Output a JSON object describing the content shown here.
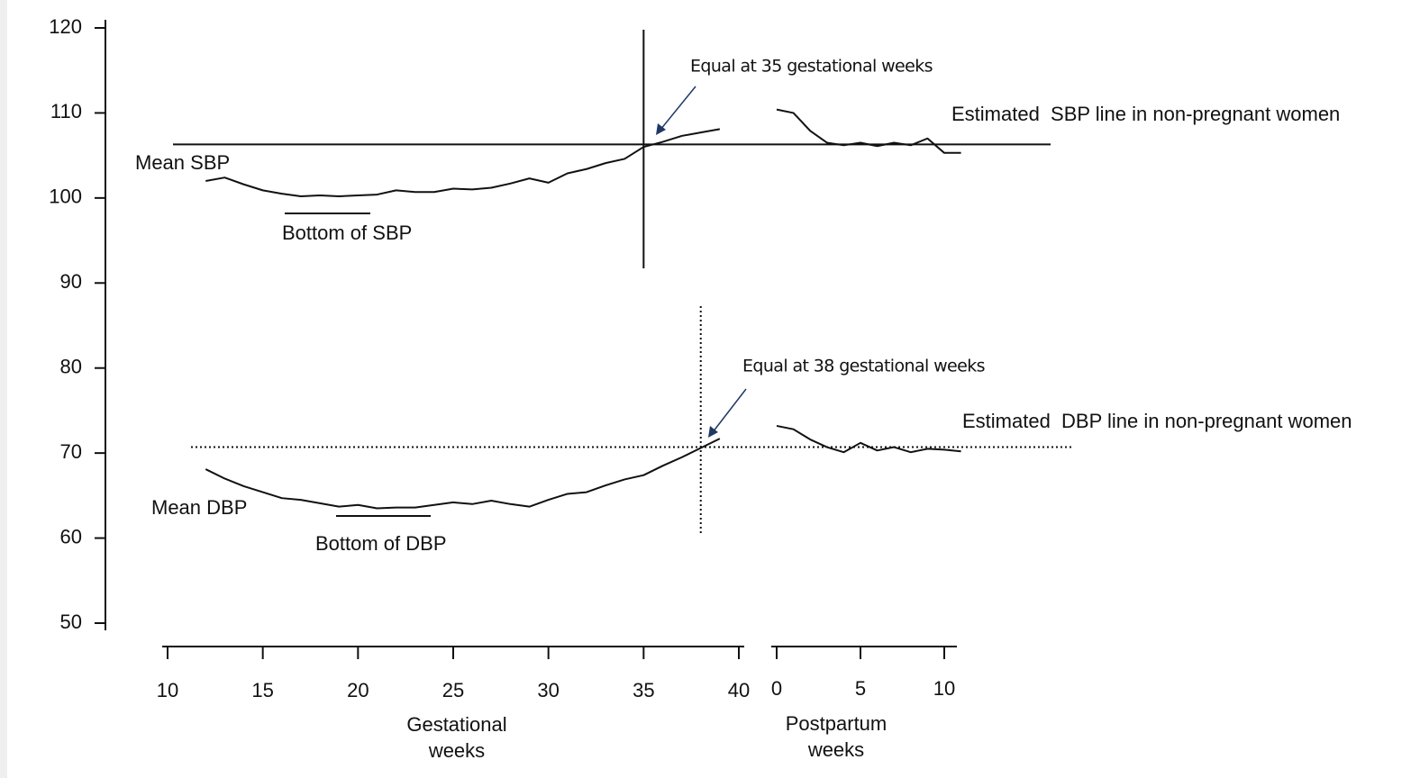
{
  "chart_data": {
    "type": "line",
    "ylim": [
      50,
      120
    ],
    "yticks": [
      50,
      60,
      70,
      80,
      90,
      100,
      110,
      120
    ],
    "gestational": {
      "xlabel": "Gestational weeks",
      "xlim": [
        10,
        40
      ],
      "xticks": [
        10,
        15,
        20,
        25,
        30,
        35,
        40
      ],
      "x": [
        12,
        13,
        14,
        15,
        16,
        17,
        18,
        19,
        20,
        21,
        22,
        23,
        24,
        25,
        26,
        27,
        28,
        29,
        30,
        31,
        32,
        33,
        34,
        35,
        36,
        37,
        38,
        39
      ]
    },
    "postpartum": {
      "xlabel": "Postpartum weeks",
      "xlim": [
        0,
        10
      ],
      "xticks": [
        0,
        5,
        10
      ],
      "x": [
        0,
        1,
        2,
        3,
        4,
        5,
        6,
        7,
        8,
        9,
        10,
        11
      ]
    },
    "series": [
      {
        "name": "Mean SBP",
        "color": "#111111",
        "gestational_values": [
          102.0,
          102.4,
          101.6,
          100.9,
          100.5,
          100.2,
          100.3,
          100.2,
          100.3,
          100.4,
          100.9,
          100.7,
          100.7,
          101.1,
          101.0,
          101.2,
          101.7,
          102.3,
          101.8,
          102.9,
          103.4,
          104.1,
          104.6,
          106.0,
          106.6,
          107.3,
          107.7,
          108.1
        ],
        "postpartum_values": [
          110.4,
          110.0,
          107.9,
          106.5,
          106.2,
          106.5,
          106.1,
          106.5,
          106.2,
          107.0,
          105.3,
          105.3
        ],
        "bottom_label": "Bottom of SBP",
        "reference": {
          "label": "Estimated  SBP line in non-pregnant women",
          "value": 106.3,
          "style": "solid"
        },
        "crossing": {
          "label": "Equal at 35 gestational weeks",
          "x": 35,
          "style": "solid"
        }
      },
      {
        "name": "Mean DBP",
        "color": "#111111",
        "gestational_values": [
          68.1,
          67.0,
          66.1,
          65.4,
          64.7,
          64.5,
          64.1,
          63.7,
          63.9,
          63.5,
          63.6,
          63.6,
          63.9,
          64.2,
          64.0,
          64.4,
          64.0,
          63.7,
          64.5,
          65.2,
          65.4,
          66.2,
          66.9,
          67.4,
          68.5,
          69.5,
          70.6,
          71.7
        ],
        "postpartum_values": [
          73.2,
          72.8,
          71.6,
          70.7,
          70.1,
          71.2,
          70.3,
          70.7,
          70.1,
          70.5,
          70.4,
          70.2
        ],
        "bottom_label": "Bottom of DBP",
        "reference": {
          "label": "Estimated  DBP line in non-pregnant women",
          "value": 70.7,
          "style": "dotted"
        },
        "crossing": {
          "label": "Equal at 38 gestational weeks",
          "x": 38,
          "style": "dotted"
        }
      }
    ]
  }
}
